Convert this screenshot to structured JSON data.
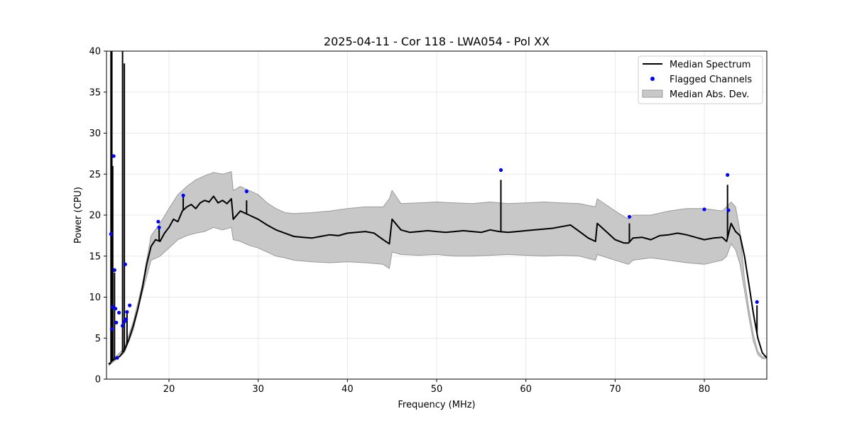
{
  "chart_data": {
    "type": "line",
    "title": "2025-04-11 - Cor 118 - LWA054 - Pol XX",
    "xlabel": "Frequency (MHz)",
    "ylabel": "Power (CPU)",
    "xlim": [
      13,
      87
    ],
    "ylim": [
      0,
      40
    ],
    "xticks": [
      20,
      30,
      40,
      50,
      60,
      70,
      80
    ],
    "xtick_labels": [
      "20",
      "30",
      "40",
      "50",
      "60",
      "70",
      "80"
    ],
    "yticks": [
      0,
      5,
      10,
      15,
      20,
      25,
      30,
      35,
      40
    ],
    "ytick_labels": [
      "0",
      "5",
      "10",
      "15",
      "20",
      "25",
      "30",
      "35",
      "40"
    ],
    "grid": true,
    "legend_position": "top-right",
    "legend": [
      "Median Spectrum",
      "Flagged Channels",
      "Median Abs. Dev."
    ],
    "colors": {
      "median": "#000000",
      "flagged": "#0000ff",
      "mad_fill": "#c8c8c8",
      "mad_edge": "#9a9a9a"
    },
    "series": [
      {
        "name": "Median Spectrum",
        "x": [
          13.3,
          13.6,
          14.0,
          14.5,
          15.0,
          15.5,
          16.0,
          16.5,
          17.0,
          17.5,
          18.0,
          18.5,
          19.0,
          19.5,
          20.0,
          20.5,
          21.0,
          21.5,
          22.0,
          22.5,
          23.0,
          23.5,
          24.0,
          24.5,
          25.0,
          25.5,
          26.0,
          26.5,
          27.0,
          27.2,
          28.0,
          29.0,
          30.0,
          31.0,
          32.0,
          33.0,
          34.0,
          35.0,
          36.0,
          37.0,
          38.0,
          39.0,
          40.0,
          41.0,
          42.0,
          43.0,
          44.0,
          44.7,
          45.0,
          46.0,
          47.0,
          48.0,
          49.0,
          50.0,
          51.0,
          52.0,
          53.0,
          54.0,
          55.0,
          56.0,
          57.0,
          58.0,
          59.0,
          60.0,
          61.0,
          62.0,
          63.0,
          64.0,
          65.0,
          66.0,
          67.0,
          67.8,
          68.0,
          69.0,
          70.0,
          71.0,
          71.5,
          72.0,
          73.0,
          74.0,
          75.0,
          76.0,
          77.0,
          78.0,
          79.0,
          80.0,
          81.0,
          82.0,
          82.5,
          83.0,
          83.5,
          84.0,
          84.5,
          85.0,
          85.5,
          86.0,
          86.5,
          87.0
        ],
        "y": [
          1.8,
          2.2,
          2.5,
          2.8,
          3.5,
          4.8,
          6.5,
          8.5,
          11.0,
          14.0,
          16.2,
          17.0,
          16.8,
          17.8,
          18.5,
          19.5,
          19.2,
          20.5,
          21.0,
          21.3,
          20.8,
          21.5,
          21.8,
          21.6,
          22.3,
          21.5,
          21.8,
          21.4,
          22.0,
          19.5,
          20.5,
          20.0,
          19.5,
          18.8,
          18.2,
          17.8,
          17.4,
          17.3,
          17.2,
          17.4,
          17.6,
          17.5,
          17.8,
          17.9,
          18.0,
          17.8,
          17.0,
          16.5,
          19.5,
          18.2,
          17.9,
          18.0,
          18.1,
          18.0,
          17.9,
          18.0,
          18.1,
          18.0,
          17.9,
          18.2,
          18.0,
          17.9,
          18.0,
          18.1,
          18.2,
          18.3,
          18.4,
          18.6,
          18.8,
          18.0,
          17.2,
          16.8,
          19.0,
          18.0,
          17.0,
          16.6,
          16.6,
          17.2,
          17.3,
          17.0,
          17.5,
          17.6,
          17.8,
          17.6,
          17.3,
          17.0,
          17.2,
          17.3,
          16.8,
          19.0,
          18.0,
          17.5,
          15.0,
          11.5,
          8.0,
          5.0,
          3.2,
          2.6
        ]
      },
      {
        "name": "Median Abs. Dev. lower",
        "x": [
          13.3,
          15.0,
          16.0,
          17.0,
          18.0,
          19.0,
          20.0,
          21.0,
          22.0,
          23.0,
          24.0,
          25.0,
          26.0,
          27.0,
          27.2,
          28.0,
          29.0,
          30.0,
          31.0,
          32.0,
          33.0,
          34.0,
          36.0,
          38.0,
          40.0,
          42.0,
          44.0,
          44.7,
          45.0,
          46.0,
          48.0,
          50.0,
          52.0,
          54.0,
          56.0,
          58.0,
          60.0,
          62.0,
          64.0,
          66.0,
          67.8,
          68.0,
          70.0,
          71.5,
          72.0,
          74.0,
          76.0,
          78.0,
          80.0,
          82.0,
          82.5,
          83.0,
          83.5,
          84.0,
          84.5,
          85.0,
          85.5,
          86.0,
          86.5,
          87.0
        ],
        "y": [
          1.7,
          3.2,
          6.0,
          10.5,
          14.5,
          15.0,
          16.0,
          17.0,
          17.5,
          17.8,
          18.0,
          18.5,
          18.2,
          18.5,
          17.0,
          16.8,
          16.3,
          16.0,
          15.5,
          15.0,
          14.8,
          14.5,
          14.3,
          14.2,
          14.3,
          14.2,
          14.0,
          13.5,
          15.5,
          15.2,
          15.1,
          15.2,
          15.0,
          15.0,
          15.1,
          15.2,
          15.1,
          15.0,
          15.1,
          15.0,
          14.5,
          15.2,
          14.5,
          14.0,
          14.5,
          14.8,
          14.5,
          14.2,
          14.0,
          14.5,
          15.0,
          16.5,
          15.8,
          14.0,
          10.8,
          7.5,
          4.6,
          3.0,
          2.5,
          2.5
        ]
      },
      {
        "name": "Median Abs. Dev. upper",
        "x": [
          13.3,
          15.0,
          16.0,
          17.0,
          18.0,
          19.0,
          20.0,
          21.0,
          22.0,
          23.0,
          24.0,
          25.0,
          26.0,
          27.0,
          27.2,
          28.0,
          29.0,
          30.0,
          31.0,
          32.0,
          33.0,
          34.0,
          36.0,
          38.0,
          40.0,
          42.0,
          44.0,
          44.7,
          45.0,
          46.0,
          48.0,
          50.0,
          52.0,
          54.0,
          56.0,
          58.0,
          60.0,
          62.0,
          64.0,
          66.0,
          67.8,
          68.0,
          70.0,
          71.5,
          72.0,
          74.0,
          76.0,
          78.0,
          80.0,
          82.0,
          82.5,
          83.0,
          83.5,
          84.0,
          84.5,
          85.0,
          85.5,
          86.0,
          86.5,
          87.0
        ],
        "y": [
          1.9,
          3.8,
          7.0,
          11.5,
          17.5,
          19.0,
          20.8,
          22.5,
          23.5,
          24.3,
          24.8,
          25.2,
          25.0,
          25.3,
          23.0,
          23.5,
          23.0,
          22.5,
          21.5,
          20.8,
          20.3,
          20.2,
          20.3,
          20.5,
          20.8,
          21.0,
          21.0,
          22.0,
          23.0,
          21.4,
          21.5,
          21.6,
          21.5,
          21.4,
          21.6,
          21.4,
          21.5,
          21.6,
          21.5,
          21.4,
          21.0,
          22.0,
          20.5,
          19.5,
          20.0,
          20.0,
          20.5,
          20.8,
          20.8,
          20.5,
          21.0,
          21.6,
          21.0,
          18.0,
          12.2,
          8.5,
          5.4,
          3.4,
          2.7,
          2.7
        ]
      },
      {
        "name": "Flagged Channels",
        "x": [
          13.5,
          13.6,
          13.7,
          13.8,
          13.9,
          14.0,
          14.1,
          14.2,
          14.4,
          14.8,
          15.0,
          15.1,
          15.2,
          15.3,
          15.6,
          18.8,
          18.9,
          21.6,
          28.7,
          57.2,
          71.6,
          80.0,
          82.6,
          82.7,
          85.9
        ],
        "y": [
          17.7,
          6.1,
          8.8,
          27.2,
          13.3,
          8.6,
          6.9,
          2.6,
          8.1,
          6.5,
          7.0,
          14.0,
          7.3,
          8.2,
          9.0,
          19.2,
          18.5,
          22.4,
          22.9,
          25.5,
          19.8,
          20.7,
          24.9,
          20.6,
          9.4
        ]
      }
    ],
    "spikes": [
      {
        "x": 13.3,
        "y": 2.0
      },
      {
        "x": 13.5,
        "y": 40.0
      },
      {
        "x": 13.6,
        "y": 40.0
      },
      {
        "x": 13.7,
        "y": 26.0
      },
      {
        "x": 13.9,
        "y": 13.0
      },
      {
        "x": 14.8,
        "y": 40.0
      },
      {
        "x": 15.0,
        "y": 38.5
      },
      {
        "x": 15.3,
        "y": 8.0
      },
      {
        "x": 18.9,
        "y": 18.5
      },
      {
        "x": 21.6,
        "y": 22.5
      },
      {
        "x": 28.7,
        "y": 21.8
      },
      {
        "x": 57.2,
        "y": 24.3
      },
      {
        "x": 71.6,
        "y": 19.0
      },
      {
        "x": 82.6,
        "y": 23.7
      },
      {
        "x": 85.9,
        "y": 9.0
      }
    ]
  }
}
